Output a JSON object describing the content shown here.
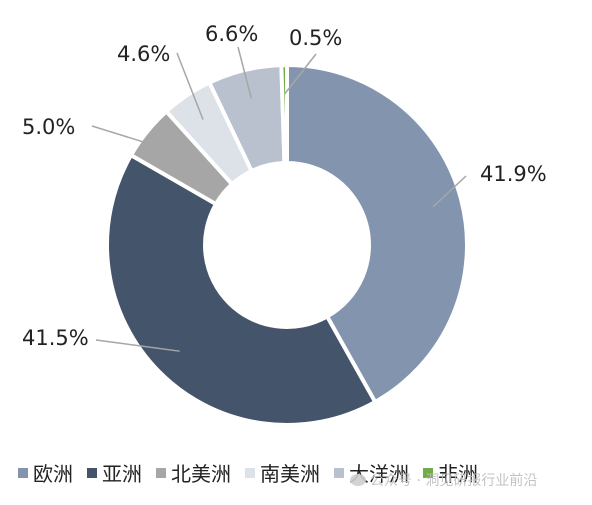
{
  "chart_data": {
    "type": "pie",
    "donut": true,
    "categories": [
      "欧洲",
      "亚洲",
      "北美洲",
      "南美洲",
      "大洋洲",
      "非洲"
    ],
    "values": [
      41.9,
      41.5,
      5.0,
      4.6,
      6.6,
      0.5
    ],
    "value_labels": [
      "41.9%",
      "41.5%",
      "5.0%",
      "4.6%",
      "6.6%",
      "0.5%"
    ],
    "colors": [
      "#8395ae",
      "#44546a",
      "#a6a6a6",
      "#dde1e8",
      "#b9c1cf",
      "#70ad47"
    ],
    "slice_order": [
      0,
      1,
      2,
      3,
      4,
      5
    ],
    "legend_placement": "bottom",
    "title": ""
  },
  "watermark": {
    "text": "公众号 · 洞见研报行业前沿"
  }
}
